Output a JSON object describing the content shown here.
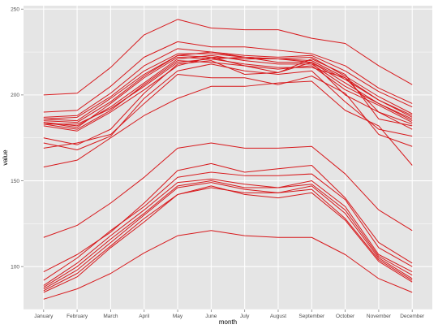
{
  "chart_data": {
    "type": "line",
    "title": "",
    "xlabel": "month",
    "ylabel": "value",
    "categories": [
      "January",
      "February",
      "March",
      "April",
      "May",
      "June",
      "July",
      "August",
      "September",
      "October",
      "November",
      "December"
    ],
    "ylim": [
      75,
      252
    ],
    "yticks": [
      100,
      150,
      200,
      250
    ],
    "grid": true,
    "legend": "none",
    "colors": {
      "panel": "#e5e5e5",
      "grid": "#ffffff",
      "line": "#d7191c"
    },
    "series": [
      {
        "values": [
          200,
          201,
          216,
          235,
          244,
          239,
          238,
          238,
          233,
          230,
          217,
          206
        ]
      },
      {
        "values": [
          190,
          191,
          205,
          222,
          231,
          228,
          228,
          226,
          224,
          217,
          204,
          195
        ]
      },
      {
        "values": [
          187,
          188,
          201,
          217,
          227,
          225,
          223,
          222,
          223,
          214,
          202,
          193
        ]
      },
      {
        "values": [
          186,
          187,
          199,
          214,
          224,
          224,
          222,
          221,
          222,
          211,
          199,
          189
        ]
      },
      {
        "values": [
          186,
          185,
          198,
          212,
          223,
          225,
          222,
          221,
          220,
          210,
          197,
          188
        ]
      },
      {
        "values": [
          185,
          184,
          196,
          211,
          223,
          222,
          221,
          221,
          219,
          209,
          197,
          187
        ]
      },
      {
        "values": [
          184,
          181,
          195,
          210,
          222,
          221,
          222,
          219,
          219,
          207,
          195,
          186
        ]
      },
      {
        "values": [
          184,
          182,
          193,
          207,
          221,
          223,
          220,
          218,
          218,
          205,
          195,
          185
        ]
      },
      {
        "values": [
          183,
          180,
          191,
          206,
          220,
          219,
          217,
          215,
          217,
          203,
          194,
          184
        ]
      },
      {
        "values": [
          183,
          183,
          192,
          205,
          219,
          221,
          218,
          216,
          216,
          210,
          190,
          183
        ]
      },
      {
        "values": [
          182,
          179,
          190,
          203,
          217,
          222,
          217,
          213,
          221,
          212,
          186,
          182
        ]
      },
      {
        "values": [
          175,
          171,
          180,
          201,
          218,
          220,
          212,
          213,
          219,
          200,
          190,
          180
        ]
      },
      {
        "values": [
          172,
          168,
          176,
          198,
          214,
          218,
          214,
          212,
          214,
          196,
          180,
          176
        ]
      },
      {
        "values": [
          169,
          172,
          177,
          195,
          212,
          210,
          210,
          206,
          211,
          201,
          177,
          170
        ]
      },
      {
        "values": [
          158,
          162,
          175,
          188,
          198,
          205,
          205,
          207,
          208,
          191,
          182,
          159
        ]
      },
      {
        "values": [
          117,
          124,
          137,
          152,
          169,
          172,
          169,
          169,
          170,
          154,
          133,
          121
        ]
      },
      {
        "values": [
          97,
          107,
          120,
          137,
          156,
          160,
          155,
          157,
          159,
          140,
          114,
          102
        ]
      },
      {
        "values": [
          92,
          105,
          121,
          135,
          152,
          155,
          153,
          153,
          154,
          139,
          111,
          100
        ]
      },
      {
        "values": [
          89,
          102,
          118,
          133,
          149,
          151,
          148,
          146,
          150,
          135,
          107,
          97
        ]
      },
      {
        "values": [
          88,
          100,
          116,
          131,
          147,
          150,
          146,
          146,
          148,
          133,
          106,
          95
        ]
      },
      {
        "values": [
          87,
          98,
          114,
          130,
          146,
          149,
          145,
          143,
          147,
          131,
          105,
          93
        ]
      },
      {
        "values": [
          86,
          96,
          112,
          128,
          142,
          146,
          143,
          143,
          145,
          128,
          104,
          92
        ]
      },
      {
        "values": [
          85,
          94,
          111,
          126,
          142,
          147,
          142,
          140,
          143,
          127,
          103,
          91
        ]
      },
      {
        "values": [
          81,
          87,
          96,
          108,
          118,
          121,
          118,
          117,
          117,
          107,
          93,
          85
        ]
      }
    ]
  }
}
